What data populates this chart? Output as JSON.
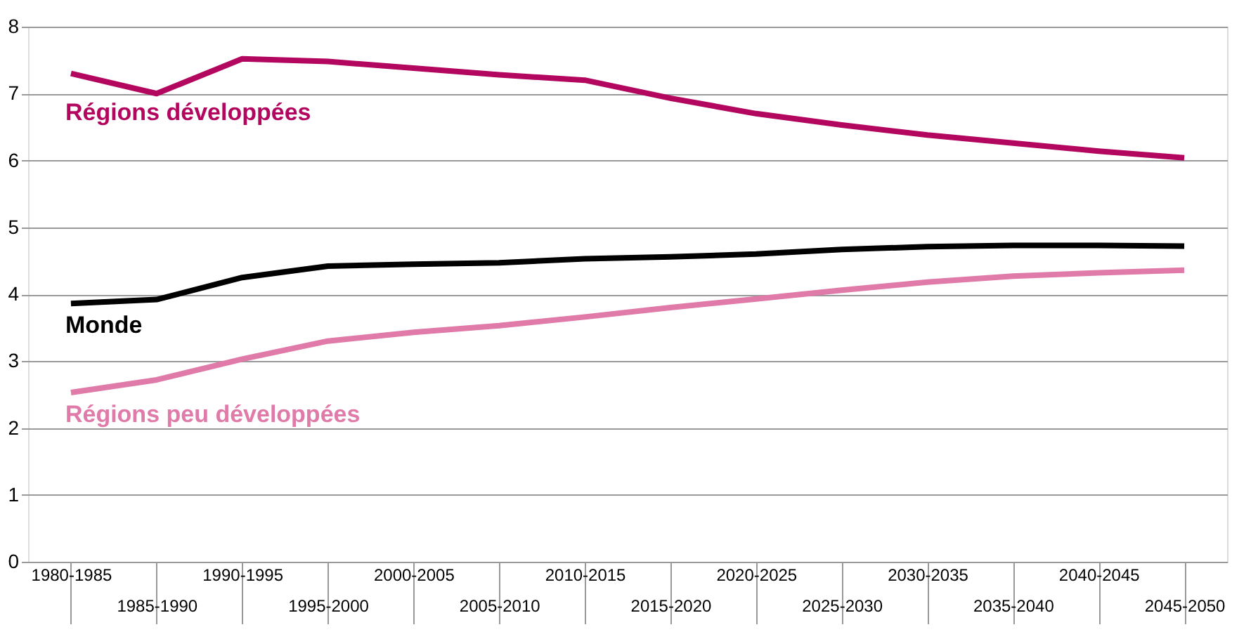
{
  "chart_data": {
    "type": "line",
    "categories": [
      "1980-1985",
      "1985-1990",
      "1990-1995",
      "1995-2000",
      "2000-2005",
      "2005-2010",
      "2010-2015",
      "2015-2020",
      "2020-2025",
      "2025-2030",
      "2030-2035",
      "2035-2040",
      "2040-2045",
      "2045-2050"
    ],
    "series": [
      {
        "name": "Régions développées",
        "color": "#b3065e",
        "values": [
          7.3,
          7.0,
          7.52,
          7.48,
          7.38,
          7.28,
          7.2,
          6.93,
          6.7,
          6.53,
          6.38,
          6.26,
          6.14,
          6.04
        ]
      },
      {
        "name": "Monde",
        "color": "#000000",
        "values": [
          3.86,
          3.92,
          4.25,
          4.42,
          4.45,
          4.47,
          4.53,
          4.56,
          4.6,
          4.67,
          4.71,
          4.73,
          4.73,
          4.72
        ]
      },
      {
        "name": "Régions peu développées",
        "color": "#e07aa8",
        "values": [
          2.53,
          2.72,
          3.03,
          3.3,
          3.43,
          3.53,
          3.66,
          3.8,
          3.93,
          4.06,
          4.18,
          4.27,
          4.32,
          4.36
        ]
      }
    ],
    "ylim": [
      0,
      8
    ],
    "yticks": [
      0,
      1,
      2,
      3,
      4,
      5,
      6,
      7,
      8
    ],
    "grid": "y",
    "legend": false,
    "marker": "none",
    "line_style": "solid"
  }
}
